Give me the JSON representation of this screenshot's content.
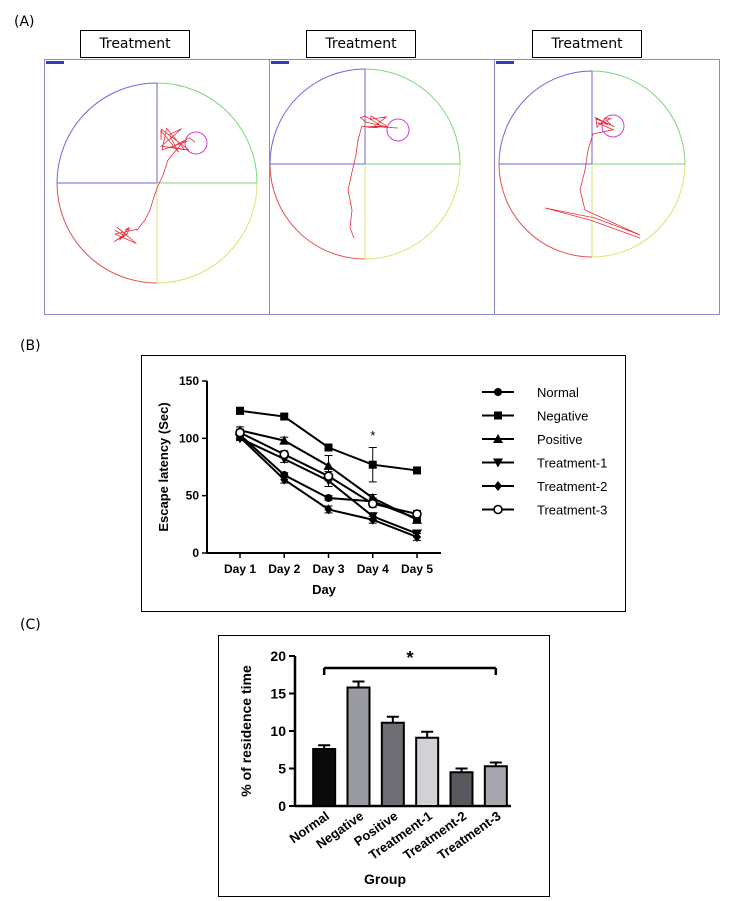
{
  "panels": {
    "a": {
      "letter": "(A)",
      "tracks": [
        {
          "title": "Treatment"
        },
        {
          "title": "Treatment"
        },
        {
          "title": "Treatment"
        }
      ]
    },
    "b": {
      "letter": "(B)"
    },
    "c": {
      "letter": "(C)"
    }
  },
  "colors": {
    "path": "#e8303a",
    "platform": "#d040d0",
    "quad_nw": "#6a6ad8",
    "quad_ne": "#7ad87a",
    "quad_sw": "#e05050",
    "quad_se": "#e0e070",
    "frame": "#8a8ac8"
  },
  "chart_data": [
    {
      "type": "line",
      "xlabel": "Day",
      "ylabel": "Escape latency (Sec)",
      "categories": [
        "Day 1",
        "Day 2",
        "Day 3",
        "Day 4",
        "Day 5"
      ],
      "ylim": [
        0,
        150
      ],
      "yticks": [
        "0",
        "50",
        "100",
        "150"
      ],
      "annotation": "*",
      "annotation_at": {
        "category": "Day 4",
        "y": 102
      },
      "legend_position": "right",
      "series": [
        {
          "name": "Normal",
          "marker": "circle",
          "values": [
            103,
            68,
            48,
            45,
            30
          ],
          "err": [
            3,
            2,
            2,
            3,
            2
          ]
        },
        {
          "name": "Negative",
          "marker": "square",
          "values": [
            124,
            119,
            92,
            77,
            72
          ],
          "err": [
            3,
            2,
            2,
            15,
            2
          ]
        },
        {
          "name": "Positive",
          "marker": "triangle",
          "values": [
            107,
            98,
            76,
            48,
            29
          ],
          "err": [
            3,
            3,
            9,
            3,
            3
          ]
        },
        {
          "name": "Treatment-1",
          "marker": "triangle-down",
          "values": [
            100,
            82,
            63,
            32,
            17
          ],
          "err": [
            2,
            3,
            5,
            3,
            3
          ]
        },
        {
          "name": "Treatment-2",
          "marker": "diamond",
          "values": [
            101,
            64,
            38,
            29,
            14
          ],
          "err": [
            2,
            3,
            3,
            3,
            3
          ]
        },
        {
          "name": "Treatment-3",
          "marker": "open-circle",
          "values": [
            105,
            86,
            67,
            43,
            34
          ],
          "err": [
            3,
            3,
            4,
            3,
            3
          ]
        }
      ]
    },
    {
      "type": "bar",
      "xlabel": "Group",
      "ylabel": "% of residence time",
      "categories": [
        "Normal",
        "Negative",
        "Positive",
        "Treatment-1",
        "Treatment-2",
        "Treatment-3"
      ],
      "values": [
        7.6,
        15.8,
        11.1,
        9.1,
        4.5,
        5.3
      ],
      "err": [
        0.5,
        0.8,
        0.8,
        0.8,
        0.5,
        0.5
      ],
      "bar_colors": [
        "#0a0a0a",
        "#9a9aa2",
        "#6e6e74",
        "#d2d2d6",
        "#58585e",
        "#a6a6ae"
      ],
      "ylim": [
        0,
        20
      ],
      "yticks": [
        "0",
        "5",
        "10",
        "15",
        "20"
      ],
      "annotation": "*"
    }
  ]
}
